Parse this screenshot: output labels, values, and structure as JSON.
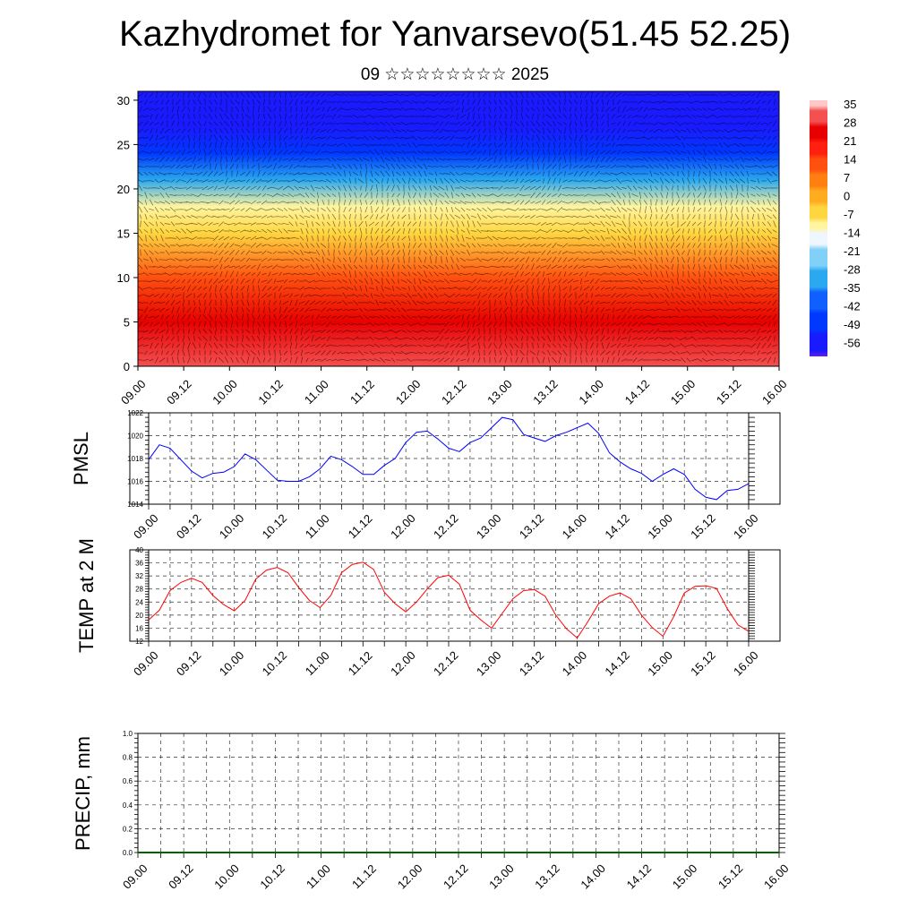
{
  "title": "Kazhydromet for Yanvarsevo(51.45 52.25)",
  "subtitle": "09 ☆☆☆☆☆☆☆☆ 2025",
  "colors": {
    "pmsl": "#0000ff",
    "temp": "#ff0000",
    "precip": "#006400"
  },
  "chart_data": [
    {
      "type": "heatmap",
      "title": "",
      "x_tick_labels": [
        "09.00",
        "09.12",
        "10.00",
        "10.12",
        "11.00",
        "11.12",
        "12.00",
        "12.12",
        "13.00",
        "13.12",
        "14.00",
        "14.12",
        "15.00",
        "15.12",
        "16.00"
      ],
      "x_range": [
        0,
        168
      ],
      "y_ticks": [
        0,
        5,
        10,
        15,
        20,
        25,
        30
      ],
      "ylim": [
        0,
        31
      ],
      "colorbar_labels": [
        "35",
        "28",
        "21",
        "14",
        "7",
        "0",
        "-7",
        "-14",
        "-21",
        "-28",
        "-35",
        "-42",
        "-49",
        "-56"
      ],
      "value_range": [
        -60,
        36
      ],
      "rows": [
        {
          "level": 0,
          "min": 24,
          "max": 36
        },
        {
          "level": 5,
          "min": 20,
          "max": 26
        },
        {
          "level": 10,
          "min": 10,
          "max": 14
        },
        {
          "level": 15,
          "min": -8,
          "max": -2
        },
        {
          "level": 18,
          "min": -14,
          "max": -10
        },
        {
          "level": 21,
          "min": -32,
          "max": -26
        },
        {
          "level": 24,
          "min": -50,
          "max": -46
        },
        {
          "level": 27,
          "min": -55,
          "max": -50
        },
        {
          "level": 31,
          "min": -60,
          "max": -56
        }
      ],
      "warm_peaks_x_hours": [
        8,
        31,
        43,
        55,
        79,
        103,
        125,
        150
      ]
    },
    {
      "type": "line",
      "ylabel": "PMSL",
      "ylim": [
        1014,
        1022
      ],
      "y_ticks": [
        1014,
        1016,
        1018,
        1020,
        1022
      ],
      "x_tick_labels": [
        "09.00",
        "09.12",
        "10.00",
        "10.12",
        "11.00",
        "11.12",
        "12.00",
        "12.12",
        "13.00",
        "13.12",
        "14.00",
        "14.12",
        "15.00",
        "15.12",
        "16.00"
      ],
      "x_hours": [
        0,
        3,
        6,
        9,
        12,
        15,
        18,
        21,
        24,
        27,
        30,
        33,
        36,
        39,
        42,
        45,
        48,
        51,
        54,
        57,
        60,
        63,
        66,
        69,
        72,
        75,
        78,
        81,
        84,
        87,
        90,
        93,
        96,
        99,
        102,
        105,
        108,
        111,
        114,
        117,
        120,
        123,
        126,
        129,
        132,
        135,
        138,
        141,
        144,
        147,
        150,
        153,
        156,
        159,
        162,
        165,
        168
      ],
      "series": [
        {
          "values": [
            1017.9,
            1019.2,
            1018.9,
            1017.9,
            1016.9,
            1016.3,
            1016.7,
            1016.8,
            1017.3,
            1018.4,
            1017.9,
            1017.0,
            1016.1,
            1016.0,
            1016.0,
            1016.4,
            1017.1,
            1018.2,
            1017.9,
            1017.3,
            1016.6,
            1016.6,
            1017.4,
            1018.0,
            1019.4,
            1020.3,
            1020.4,
            1019.7,
            1018.9,
            1018.6,
            1019.4,
            1019.8,
            1020.7,
            1021.6,
            1021.4,
            1020.1,
            1019.8,
            1019.5,
            1020.0,
            1020.3,
            1020.7,
            1021.1,
            1020.2,
            1018.5,
            1017.7,
            1017.1,
            1016.7,
            1016.0,
            1016.6,
            1017.1,
            1016.6,
            1015.3,
            1014.6,
            1014.4,
            1015.2,
            1015.3,
            1015.8
          ]
        }
      ]
    },
    {
      "type": "line",
      "ylabel": "TEMP at 2 M",
      "ylim": [
        12,
        40
      ],
      "y_ticks": [
        12,
        16,
        20,
        24,
        28,
        32,
        36,
        40
      ],
      "x_tick_labels": [
        "09.00",
        "09.12",
        "10.00",
        "10.12",
        "11.00",
        "11.12",
        "12.00",
        "12.12",
        "13.00",
        "13.12",
        "14.00",
        "14.12",
        "15.00",
        "15.12",
        "16.00"
      ],
      "x_hours": [
        0,
        3,
        6,
        9,
        12,
        15,
        18,
        21,
        24,
        27,
        30,
        33,
        36,
        39,
        42,
        45,
        48,
        51,
        54,
        57,
        60,
        63,
        66,
        69,
        72,
        75,
        78,
        81,
        84,
        87,
        90,
        93,
        96,
        99,
        102,
        105,
        108,
        111,
        114,
        117,
        120,
        123,
        126,
        129,
        132,
        135,
        138,
        141,
        144,
        147,
        150,
        153,
        156,
        159,
        162,
        165,
        168
      ],
      "series": [
        {
          "values": [
            18.5,
            21.5,
            27.5,
            30.0,
            31.3,
            30.0,
            26.0,
            23.2,
            21.3,
            24.5,
            31.0,
            33.8,
            34.6,
            33.0,
            28.5,
            24.5,
            22.3,
            26.0,
            33.0,
            35.5,
            36.2,
            34.0,
            27.0,
            23.5,
            21.0,
            24.0,
            28.0,
            31.5,
            32.2,
            29.5,
            21.5,
            18.5,
            16.0,
            20.5,
            25.0,
            27.5,
            27.8,
            25.8,
            20.0,
            15.8,
            13.0,
            18.0,
            23.5,
            25.8,
            26.8,
            25.0,
            20.0,
            16.2,
            13.5,
            19.5,
            26.8,
            28.8,
            29.0,
            28.2,
            22.0,
            17.0,
            15.0
          ]
        }
      ]
    },
    {
      "type": "line",
      "ylabel": "PRECIP, mm",
      "ylim": [
        0,
        1.0
      ],
      "y_ticks": [
        0.0,
        0.2,
        0.4,
        0.6,
        0.8,
        1.0
      ],
      "y_tick_labels": [
        "0.0",
        "0.2",
        "0.4",
        "0.6",
        "0.8",
        "1.0"
      ],
      "x_tick_labels": [
        "09.00",
        "09.12",
        "10.00",
        "10.12",
        "11.00",
        "11.12",
        "12.00",
        "12.12",
        "13.00",
        "13.12",
        "14.00",
        "14.12",
        "15.00",
        "15.12",
        "16.00"
      ],
      "x_hours": [
        0,
        168
      ],
      "series": [
        {
          "values": [
            0.0,
            0.0
          ]
        }
      ]
    }
  ]
}
